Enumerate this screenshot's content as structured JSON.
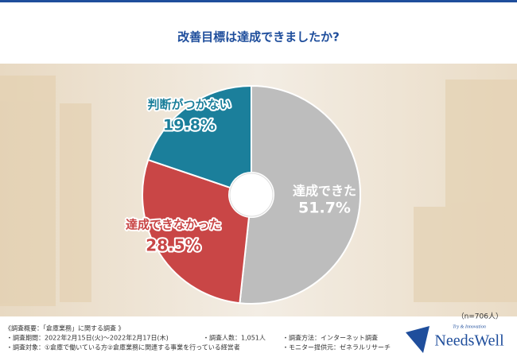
{
  "chart_data": {
    "type": "donut",
    "title": "改善目標は達成できましたか?",
    "categories": [
      "達成できた",
      "達成できなかった",
      "判断がつかない"
    ],
    "values": [
      51.7,
      28.5,
      19.8
    ],
    "value_labels": [
      "51.7%",
      "28.5%",
      "19.8%"
    ],
    "colors": [
      "#bdbdbd",
      "#c94646",
      "#1b7f9b"
    ],
    "label_colors": [
      "#ffffff",
      "#c94646",
      "#1b7f9b"
    ],
    "note": "（n=706人）"
  },
  "footer": {
    "heading": "《調査概要：「倉庫業務」に関する調査 》",
    "items": [
      "・調査期間：2022年2月15日(火)～2022年2月17日(木)",
      "・調査人数：1,051人",
      "・調査方法：インターネット調査",
      "・調査対象：①倉庫で働いている方②倉庫業務に関連する事業を行っている経営者",
      "・モニター提供元：ゼネラルリサーチ"
    ]
  },
  "logo": {
    "tagline": "Try & Innovation",
    "name": "NeedsWell"
  }
}
